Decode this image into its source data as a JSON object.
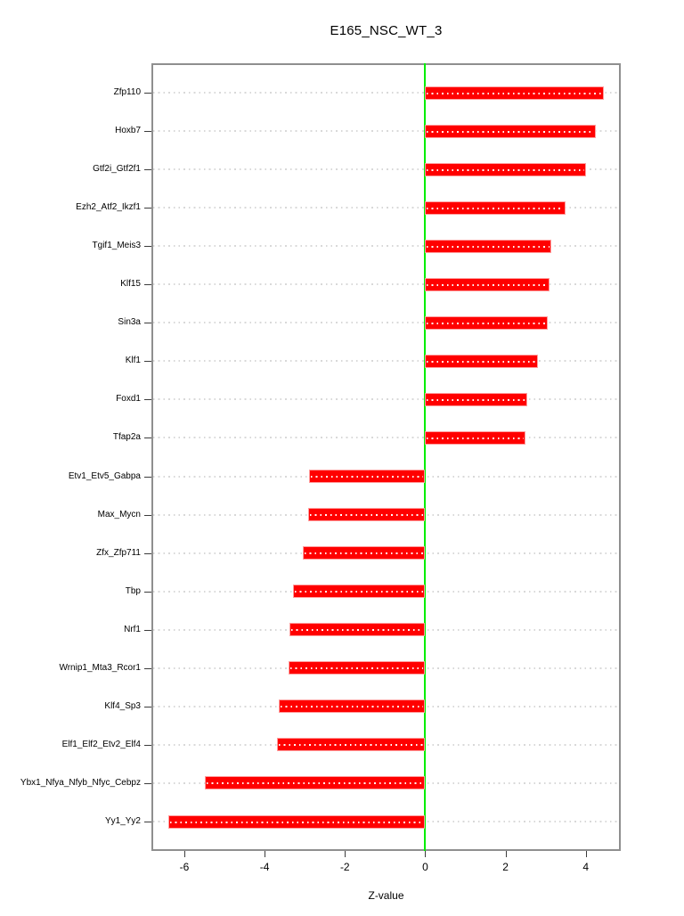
{
  "title": "E165_NSC_WT_3",
  "x_axis": {
    "label": "Z-value",
    "ticks": [
      -6,
      -4,
      -2,
      0,
      2,
      4
    ]
  },
  "colors": {
    "bar_fill": "#ff0000",
    "bar_edge": "#ff9e9e",
    "zero_line": "#00ee00",
    "box_border": "#8f8f8f",
    "grid_dots": "#d8d8d8",
    "bar_grid_dots": "#ffffff",
    "tick": "#3c3c3c",
    "text": "#000000"
  },
  "chart_data": {
    "type": "bar",
    "orientation": "horizontal",
    "title": "E165_NSC_WT_3",
    "xlabel": "Z-value",
    "ylabel": "",
    "xlim": [
      -6.82,
      4.87
    ],
    "x_ticks": [
      -6,
      -4,
      -2,
      0,
      2,
      4
    ],
    "grid": "light-gray dotted horizontal line at each category; white dotted line over bars",
    "legend": "none",
    "zero_reference_line": 0,
    "categories": [
      "Zfp110",
      "Hoxb7",
      "Gtf2i_Gtf2f1",
      "Ezh2_Atf2_Ikzf1",
      "Tgif1_Meis3",
      "Klf15",
      "Sin3a",
      "Klf1",
      "Foxd1",
      "Tfap2a",
      "Etv1_Etv5_Gabpa",
      "Max_Mycn",
      "Zfx_Zfp711",
      "Tbp",
      "Nrf1",
      "Wrnip1_Mta3_Rcor1",
      "Klf4_Sp3",
      "Elf1_Elf2_Etv2_Elf4",
      "Ybx1_Nfya_Nfyb_Nfyc_Cebpz",
      "Yy1_Yy2"
    ],
    "values": [
      4.45,
      4.25,
      4.0,
      3.5,
      3.15,
      3.1,
      3.05,
      2.8,
      2.55,
      2.5,
      -2.9,
      -2.92,
      -3.05,
      -3.3,
      -3.38,
      -3.4,
      -3.65,
      -3.7,
      -5.5,
      -6.4
    ]
  }
}
